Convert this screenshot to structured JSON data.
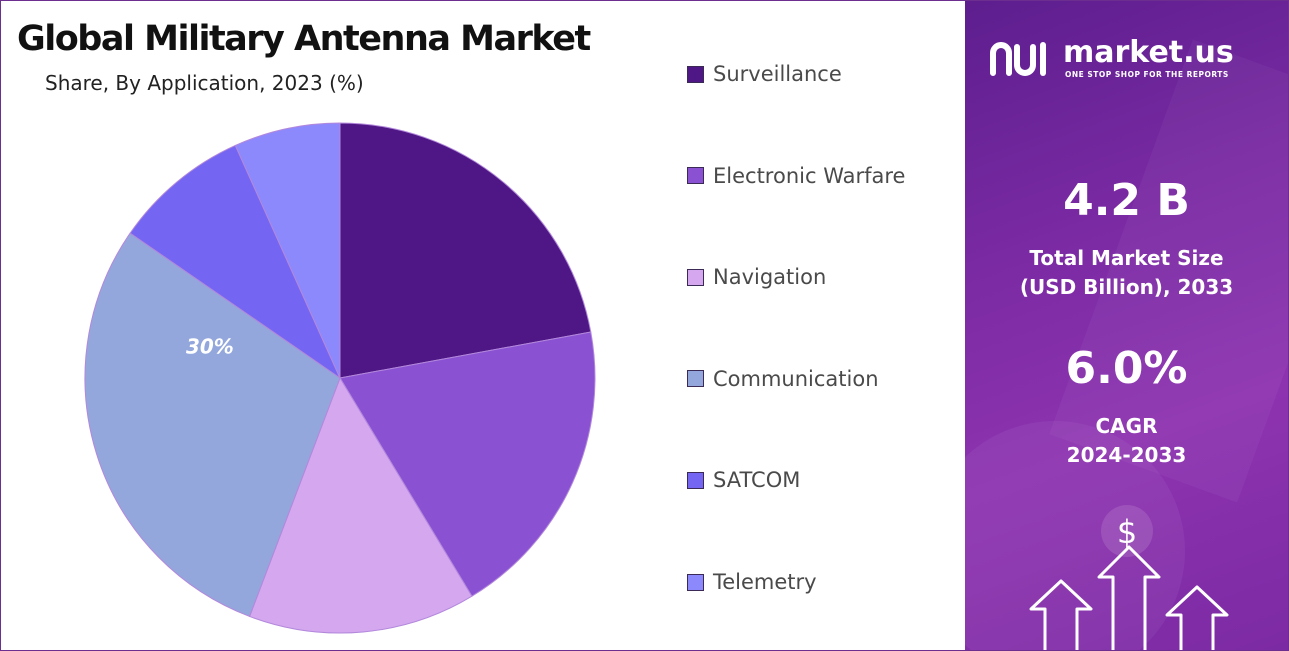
{
  "chart_data": {
    "type": "pie",
    "title": "Global Military Antenna Market",
    "subtitle": "Share, By Application, 2023 (%)",
    "slices": [
      {
        "name": "Surveillance",
        "value": 23,
        "color": "#4f1785"
      },
      {
        "name": "Electronic Warfare",
        "value": 20,
        "color": "#8a52d2"
      },
      {
        "name": "Navigation",
        "value": 15,
        "color": "#d4a7ef"
      },
      {
        "name": "Communication",
        "value": 30,
        "color": "#93a7dc"
      },
      {
        "name": "SATCOM",
        "value": 9,
        "color": "#7466f2"
      },
      {
        "name": "Telemetry",
        "value": 7,
        "color": "#8c89fc"
      }
    ],
    "data_labels": [
      {
        "slice": "Communication",
        "text": "30%"
      }
    ],
    "legend": {
      "position": "right"
    }
  },
  "panel": {
    "brand": "market.us",
    "tagline": "ONE STOP SHOP FOR THE REPORTS",
    "market_size_value": "4.2 B",
    "market_size_label_line1": "Total Market Size",
    "market_size_label_line2": "(USD Billion), 2033",
    "cagr_value": "6.0%",
    "cagr_label_line1": "CAGR",
    "cagr_label_line2": "2024-2033",
    "icons": [
      "market-us-logo-icon",
      "dollar-icon",
      "growth-arrows-icon"
    ]
  }
}
